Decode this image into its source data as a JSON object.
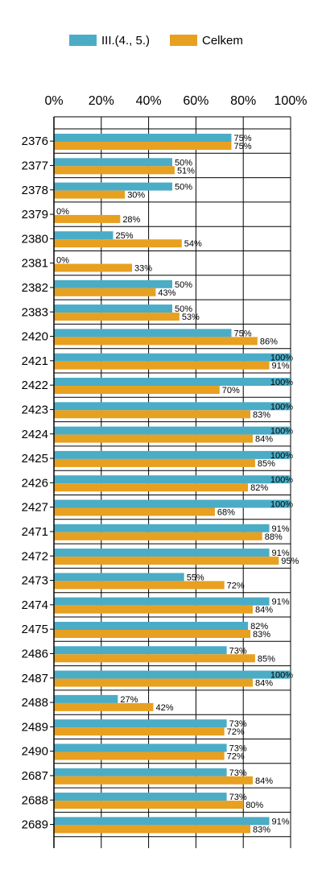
{
  "chart_data": {
    "type": "bar",
    "orientation": "horizontal",
    "categories": [
      "2376",
      "2377",
      "2378",
      "2379",
      "2380",
      "2381",
      "2382",
      "2383",
      "2420",
      "2421",
      "2422",
      "2423",
      "2424",
      "2425",
      "2426",
      "2427",
      "2471",
      "2472",
      "2473",
      "2474",
      "2475",
      "2486",
      "2487",
      "2488",
      "2489",
      "2490",
      "2687",
      "2688",
      "2689"
    ],
    "series": [
      {
        "name": "III.(4., 5.)",
        "color": "#4bacc6",
        "values": [
          75,
          50,
          50,
          0,
          25,
          0,
          50,
          50,
          75,
          100,
          100,
          100,
          100,
          100,
          100,
          100,
          91,
          91,
          55,
          91,
          82,
          73,
          100,
          27,
          73,
          73,
          73,
          73,
          91
        ]
      },
      {
        "name": "Celkem",
        "color": "#e8a020",
        "values": [
          75,
          51,
          30,
          28,
          54,
          33,
          43,
          53,
          86,
          91,
          70,
          83,
          84,
          85,
          82,
          68,
          88,
          95,
          72,
          84,
          83,
          85,
          84,
          42,
          72,
          72,
          84,
          80,
          83
        ]
      }
    ],
    "xlim": [
      0,
      100
    ],
    "x_ticks": [
      "0%",
      "20%",
      "40%",
      "60%",
      "80%",
      "100%"
    ],
    "value_suffix": "%",
    "grid": true,
    "legend_position": "top"
  }
}
